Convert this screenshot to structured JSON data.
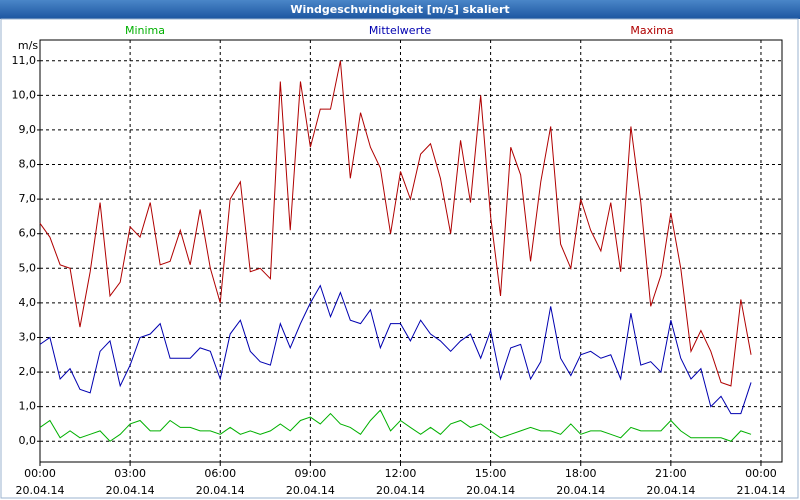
{
  "chart_data": {
    "type": "line",
    "title": "Windgeschwindigkeit [m/s] skaliert",
    "y_label": "m/s",
    "x": [
      0,
      0.33,
      0.67,
      1,
      1.33,
      1.67,
      2,
      2.33,
      2.67,
      3,
      3.33,
      3.67,
      4,
      4.33,
      4.67,
      5,
      5.33,
      5.67,
      6,
      6.33,
      6.67,
      7,
      7.33,
      7.67,
      8,
      8.33,
      8.67,
      9,
      9.33,
      9.67,
      10,
      10.33,
      10.67,
      11,
      11.33,
      11.67,
      12,
      12.33,
      12.67,
      13,
      13.33,
      13.67,
      14,
      14.33,
      14.67,
      15,
      15.33,
      15.67,
      16,
      16.33,
      16.67,
      17,
      17.33,
      17.67,
      18,
      18.33,
      18.67,
      19,
      19.33,
      19.67,
      20,
      20.33,
      20.67,
      21,
      21.33,
      21.67,
      22,
      22.33,
      22.67,
      23,
      23.33,
      23.67
    ],
    "series": [
      {
        "name": "Minima",
        "color": "#00b000",
        "values": [
          0.4,
          0.6,
          0.1,
          0.3,
          0.1,
          0.2,
          0.3,
          0.0,
          0.2,
          0.5,
          0.6,
          0.3,
          0.3,
          0.6,
          0.4,
          0.4,
          0.3,
          0.3,
          0.2,
          0.4,
          0.2,
          0.3,
          0.2,
          0.3,
          0.5,
          0.3,
          0.6,
          0.7,
          0.5,
          0.8,
          0.5,
          0.4,
          0.2,
          0.6,
          0.9,
          0.3,
          0.6,
          0.4,
          0.2,
          0.4,
          0.2,
          0.5,
          0.6,
          0.4,
          0.5,
          0.3,
          0.1,
          0.2,
          0.3,
          0.4,
          0.3,
          0.3,
          0.2,
          0.5,
          0.2,
          0.3,
          0.3,
          0.2,
          0.1,
          0.4,
          0.3,
          0.3,
          0.3,
          0.6,
          0.3,
          0.1,
          0.1,
          0.1,
          0.1,
          0.0,
          0.3,
          0.2
        ]
      },
      {
        "name": "Mittelwerte",
        "color": "#0000b0",
        "values": [
          2.8,
          3.0,
          1.8,
          2.1,
          1.5,
          1.4,
          2.6,
          2.9,
          1.6,
          2.2,
          3.0,
          3.1,
          3.4,
          2.4,
          2.4,
          2.4,
          2.7,
          2.6,
          1.8,
          3.1,
          3.5,
          2.6,
          2.3,
          2.2,
          3.4,
          2.7,
          3.4,
          4.0,
          4.5,
          3.6,
          4.3,
          3.5,
          3.4,
          3.8,
          2.7,
          3.4,
          3.4,
          2.9,
          3.5,
          3.1,
          2.9,
          2.6,
          2.9,
          3.1,
          2.4,
          3.2,
          1.8,
          2.7,
          2.8,
          1.8,
          2.3,
          3.9,
          2.4,
          1.9,
          2.5,
          2.6,
          2.4,
          2.5,
          1.8,
          3.7,
          2.2,
          2.3,
          2.0,
          3.5,
          2.4,
          1.8,
          2.1,
          1.0,
          1.3,
          0.8,
          0.8,
          1.7
        ]
      },
      {
        "name": "Maxima",
        "color": "#b00000",
        "values": [
          6.3,
          5.9,
          5.1,
          5.0,
          3.3,
          4.9,
          6.9,
          4.2,
          4.6,
          6.2,
          5.9,
          6.9,
          5.1,
          5.2,
          6.1,
          5.1,
          6.7,
          5.0,
          4.0,
          7.0,
          7.5,
          4.9,
          5.0,
          4.7,
          10.4,
          6.1,
          10.4,
          8.5,
          9.6,
          9.6,
          11.0,
          7.6,
          9.5,
          8.5,
          7.9,
          6.0,
          7.8,
          7.0,
          8.3,
          8.6,
          7.6,
          6.0,
          8.7,
          6.9,
          10.0,
          6.5,
          4.2,
          8.5,
          7.7,
          5.2,
          7.5,
          9.1,
          5.7,
          5.0,
          7.0,
          6.1,
          5.5,
          6.9,
          4.9,
          9.1,
          6.9,
          3.9,
          4.8,
          6.6,
          5.0,
          2.6,
          3.2,
          2.6,
          1.7,
          1.6,
          4.1,
          2.5
        ]
      }
    ],
    "xlim": [
      0,
      24.7
    ],
    "xticks": [
      {
        "value": 0,
        "label": "00:00\n20.04.14"
      },
      {
        "value": 3,
        "label": "03:00\n20.04.14"
      },
      {
        "value": 6,
        "label": "06:00\n20.04.14"
      },
      {
        "value": 9,
        "label": "09:00\n20.04.14"
      },
      {
        "value": 12,
        "label": "12:00\n20.04.14"
      },
      {
        "value": 15,
        "label": "15:00\n20.04.14"
      },
      {
        "value": 18,
        "label": "18:00\n20.04.14"
      },
      {
        "value": 21,
        "label": "21:00\n20.04.14"
      },
      {
        "value": 24,
        "label": "00:00\n21.04.14"
      }
    ],
    "ylim": [
      -0.6,
      11.6
    ],
    "yticks": [
      {
        "value": 0,
        "label": "0,0"
      },
      {
        "value": 1,
        "label": "1,0"
      },
      {
        "value": 2,
        "label": "2,0"
      },
      {
        "value": 3,
        "label": "3,0"
      },
      {
        "value": 4,
        "label": "4,0"
      },
      {
        "value": 5,
        "label": "5,0"
      },
      {
        "value": 6,
        "label": "6,0"
      },
      {
        "value": 7,
        "label": "7,0"
      },
      {
        "value": 8,
        "label": "8,0"
      },
      {
        "value": 9,
        "label": "9,0"
      },
      {
        "value": 10,
        "label": "10,0"
      },
      {
        "value": 11,
        "label": "11,0"
      }
    ],
    "grid": true
  }
}
